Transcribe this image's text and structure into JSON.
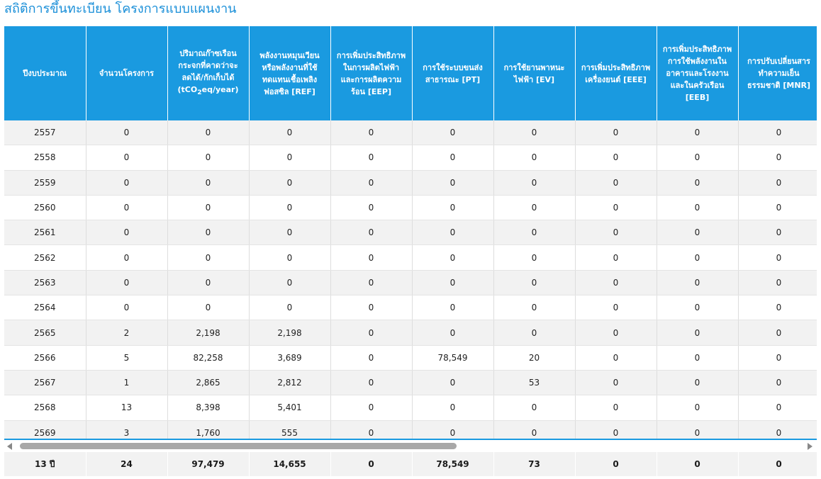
{
  "title": "สถิติการขึ้นทะเบียน โครงการแบบแผนงาน",
  "table": {
    "headers": [
      {
        "text": "ปีงบประมาณ"
      },
      {
        "text": "จำนวนโครงการ"
      },
      {
        "text": "ปริมาณก๊าซเรือนกระจกที่คาดว่าจะลดได้/กักเก็บได้",
        "unit": {
          "pre": "(tCO",
          "sub": "2",
          "post": "eq/year)"
        }
      },
      {
        "text": "พลังงานหมุนเวียนหรือพลังงานที่ใช้ทดแทนเชื้อเพลิงฟอสซิล [REF]"
      },
      {
        "text": "การเพิ่มประสิทธิภาพในการผลิตไฟฟ้าและการผลิตความร้อน [EEP]"
      },
      {
        "text": "การใช้ระบบขนส่งสาธารณะ [PT]"
      },
      {
        "text": "การใช้ยานพาหนะไฟฟ้า [EV]"
      },
      {
        "text": "การเพิ่มประสิทธิภาพเครื่องยนต์ [EEE]"
      },
      {
        "text": "การเพิ่มประสิทธิภาพการใช้พลังงานในอาคารและโรงงานและในครัวเรือน [EEB]"
      },
      {
        "text": "การปรับเปลี่ยนสารทำความเย็นธรรมชาติ [MNR]"
      }
    ],
    "rows": [
      [
        "2557",
        "0",
        "0",
        "0",
        "0",
        "0",
        "0",
        "0",
        "0",
        "0"
      ],
      [
        "2558",
        "0",
        "0",
        "0",
        "0",
        "0",
        "0",
        "0",
        "0",
        "0"
      ],
      [
        "2559",
        "0",
        "0",
        "0",
        "0",
        "0",
        "0",
        "0",
        "0",
        "0"
      ],
      [
        "2560",
        "0",
        "0",
        "0",
        "0",
        "0",
        "0",
        "0",
        "0",
        "0"
      ],
      [
        "2561",
        "0",
        "0",
        "0",
        "0",
        "0",
        "0",
        "0",
        "0",
        "0"
      ],
      [
        "2562",
        "0",
        "0",
        "0",
        "0",
        "0",
        "0",
        "0",
        "0",
        "0"
      ],
      [
        "2563",
        "0",
        "0",
        "0",
        "0",
        "0",
        "0",
        "0",
        "0",
        "0"
      ],
      [
        "2564",
        "0",
        "0",
        "0",
        "0",
        "0",
        "0",
        "0",
        "0",
        "0"
      ],
      [
        "2565",
        "2",
        "2,198",
        "2,198",
        "0",
        "0",
        "0",
        "0",
        "0",
        "0"
      ],
      [
        "2566",
        "5",
        "82,258",
        "3,689",
        "0",
        "78,549",
        "20",
        "0",
        "0",
        "0"
      ],
      [
        "2567",
        "1",
        "2,865",
        "2,812",
        "0",
        "0",
        "53",
        "0",
        "0",
        "0"
      ],
      [
        "2568",
        "13",
        "8,398",
        "5,401",
        "0",
        "0",
        "0",
        "0",
        "0",
        "0"
      ],
      [
        "2569",
        "3",
        "1,760",
        "555",
        "0",
        "0",
        "0",
        "0",
        "0",
        "0"
      ]
    ],
    "footer": [
      "13 ปี",
      "24",
      "97,479",
      "14,655",
      "0",
      "78,549",
      "73",
      "0",
      "0",
      "0"
    ]
  }
}
